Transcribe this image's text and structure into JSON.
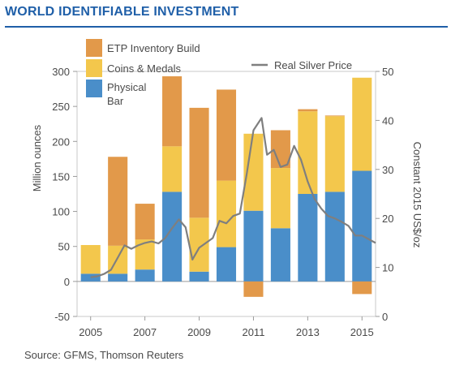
{
  "title": "WORLD IDENTIFIABLE INVESTMENT",
  "source": "Source: GFMS, Thomson Reuters",
  "chart_data": {
    "type": "bar",
    "stacked": true,
    "categories": [
      "2005",
      "2006",
      "2007",
      "2008",
      "2009",
      "2010",
      "2011",
      "2012",
      "2013",
      "2014",
      "2015"
    ],
    "xticks": [
      "2005",
      "2007",
      "2009",
      "2011",
      "2013",
      "2015"
    ],
    "ylabel": "Million ounces",
    "y2label": "Constant 2015 US$/oz",
    "ylim": [
      -50,
      300
    ],
    "yticks": [
      -50,
      0,
      50,
      100,
      150,
      200,
      250,
      300
    ],
    "y2lim": [
      0,
      50
    ],
    "y2ticks": [
      0,
      10,
      20,
      30,
      40,
      50
    ],
    "legend_position": "top-left",
    "series": [
      {
        "name": "Physical Bar",
        "color": "#4a8ec9",
        "values": [
          11,
          11,
          17,
          128,
          14,
          49,
          101,
          76,
          125,
          128,
          158
        ]
      },
      {
        "name": "Coins & Medals",
        "color": "#f3c74c",
        "values": [
          41,
          40,
          43,
          65,
          77,
          95,
          110,
          86,
          118,
          108,
          133
        ]
      },
      {
        "name": "ETP Inventory Build",
        "color": "#e2994a",
        "values": [
          0,
          127,
          51,
          100,
          157,
          130,
          -22,
          54,
          3,
          1,
          -18
        ]
      }
    ],
    "line_series": {
      "name": "Real Silver Price",
      "axis": "secondary",
      "color": "#7f7f7f",
      "x": [
        2005.0,
        2005.25,
        2005.5,
        2005.75,
        2006.0,
        2006.25,
        2006.5,
        2006.75,
        2007.0,
        2007.25,
        2007.5,
        2007.75,
        2008.0,
        2008.25,
        2008.5,
        2008.75,
        2009.0,
        2009.25,
        2009.5,
        2009.75,
        2010.0,
        2010.25,
        2010.5,
        2010.75,
        2011.0,
        2011.3,
        2011.5,
        2011.75,
        2012.0,
        2012.25,
        2012.5,
        2012.75,
        2013.0,
        2013.25,
        2013.5,
        2013.75,
        2014.0,
        2014.25,
        2014.5,
        2014.75,
        2015.0,
        2015.5
      ],
      "values": [
        8.0,
        8.2,
        8.7,
        9.5,
        12.0,
        14.5,
        13.8,
        14.5,
        15.0,
        15.3,
        14.9,
        16.0,
        18.0,
        19.8,
        18.2,
        11.6,
        14.0,
        15.0,
        16.0,
        19.5,
        19.0,
        20.5,
        21.0,
        29.0,
        38.0,
        40.5,
        33.0,
        34.0,
        30.5,
        31.0,
        34.8,
        32.0,
        27.5,
        24.0,
        22.0,
        20.5,
        20.0,
        19.3,
        18.5,
        16.5,
        16.5,
        15.0
      ]
    }
  }
}
